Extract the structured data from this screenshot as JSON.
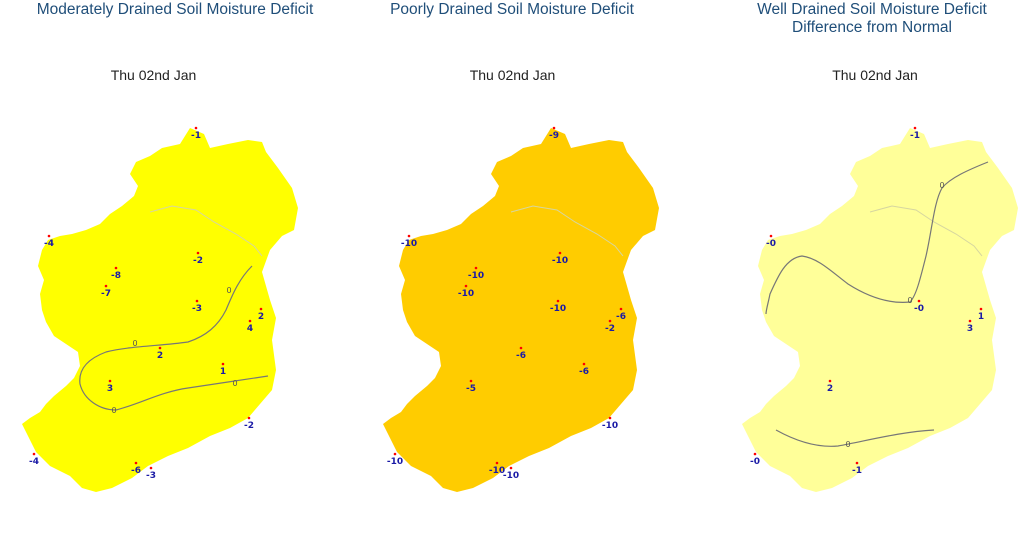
{
  "panels": [
    {
      "title": "Moderately Drained Soil Moisture Deficit",
      "date": "Thu 02nd Jan",
      "fill_color": "#ffff00",
      "stations": [
        "-1",
        "-4",
        "-8",
        "-7",
        "-2",
        "-3",
        "2",
        "4",
        "2",
        "3",
        "1",
        "-2",
        "-4",
        "-6",
        "-3"
      ],
      "contour_labels": [
        "0",
        "0",
        "0",
        "0"
      ]
    },
    {
      "title": "Poorly Drained Soil Moisture Deficit",
      "date": "Thu 02nd Jan",
      "fill_color": "#ffcc00",
      "stations": [
        "-9",
        "-10",
        "-10",
        "-10",
        "-10",
        "-10",
        "-6",
        "-2",
        "-6",
        "-5",
        "-6",
        "-10",
        "-10",
        "-10",
        "-10"
      ],
      "contour_labels": []
    },
    {
      "title": "Well Drained Soil Moisture Deficit Difference from Normal",
      "date": "Thu 02nd Jan",
      "fill_color": "#ffff99",
      "stations": [
        "-1",
        "-0",
        "-0",
        "1",
        "3",
        "2",
        "-0",
        "-1"
      ],
      "contour_labels": [
        "0",
        "0",
        "0"
      ]
    }
  ],
  "colors": {
    "title": "#1f4e79",
    "station_label": "#1a1aa6",
    "station_dot": "#ff0000",
    "contour": "#777777",
    "border": "#d6d6a0"
  }
}
